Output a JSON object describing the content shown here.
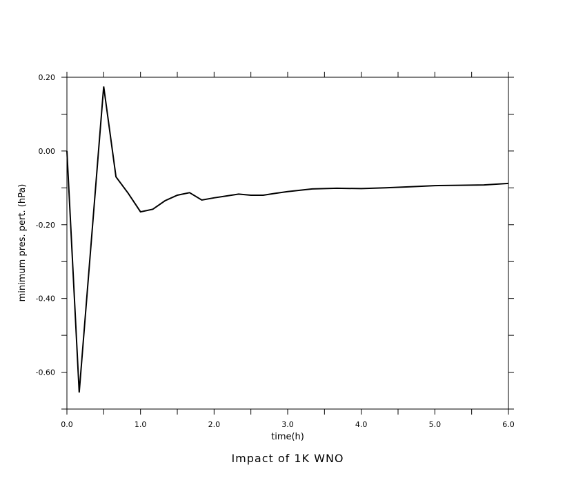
{
  "chart_data": {
    "type": "line",
    "title": "Impact of 1K WNO",
    "xlabel": "time(h)",
    "ylabel": "minimum pres. pert. (hPa)",
    "xlim": [
      0,
      6
    ],
    "ylim": [
      -0.7,
      0.2
    ],
    "x_ticks": [
      "0.0",
      "1.0",
      "2.0",
      "3.0",
      "4.0",
      "5.0",
      "6.0"
    ],
    "y_ticks": [
      "0.20",
      "0.00",
      "-0.20",
      "-0.40",
      "-0.60"
    ],
    "x_tick_values": [
      0,
      1,
      2,
      3,
      4,
      5,
      6
    ],
    "y_tick_values": [
      0.2,
      0.0,
      -0.2,
      -0.4,
      -0.6
    ],
    "grid": false,
    "series": [
      {
        "x": [
          0,
          0.167,
          0.5,
          0.667,
          0.833,
          1.0,
          1.167,
          1.333,
          1.5,
          1.667,
          1.833,
          2.0,
          2.167,
          2.333,
          2.5,
          2.667,
          2.833,
          3.0,
          3.333,
          3.667,
          4.0,
          4.333,
          4.667,
          5.0,
          5.333,
          5.667,
          6.0
        ],
        "values": [
          0.0,
          -0.655,
          0.175,
          -0.07,
          -0.115,
          -0.165,
          -0.158,
          -0.135,
          -0.12,
          -0.113,
          -0.133,
          -0.127,
          -0.122,
          -0.117,
          -0.12,
          -0.12,
          -0.115,
          -0.11,
          -0.103,
          -0.101,
          -0.102,
          -0.1,
          -0.097,
          -0.094,
          -0.093,
          -0.092,
          -0.088
        ],
        "color": "#000000"
      }
    ]
  }
}
